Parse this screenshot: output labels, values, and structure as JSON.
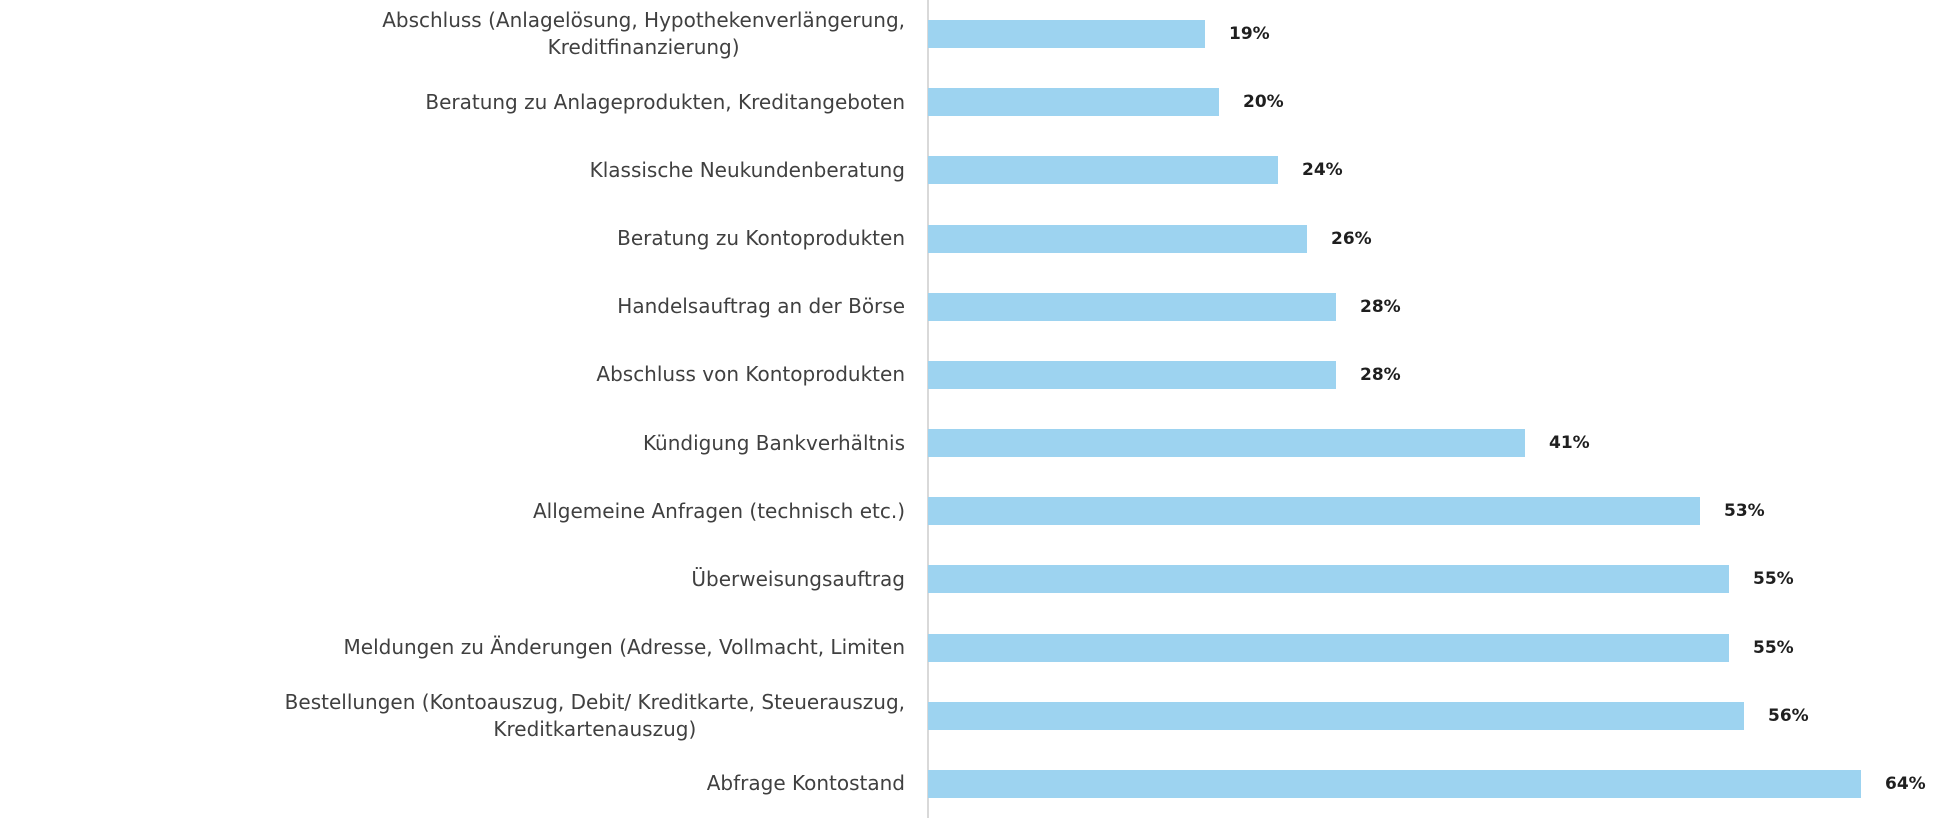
{
  "chart_data": {
    "type": "bar",
    "orientation": "horizontal",
    "title": "",
    "xlabel": "",
    "ylabel": "",
    "xlim": [
      0,
      70
    ],
    "grid": false,
    "legend": false,
    "data_labels_position": "outside-end",
    "bar_color": "#9dd3f0",
    "axis_line_color": "#d9d9d9",
    "category_label_color": "#404040",
    "value_label_color": "#1f1f1f",
    "categories": [
      "Abschluss (Anlagelösung, Hypothekenverlängerung,\nKreditfinanzierung)",
      "Beratung zu Anlageprodukten, Kreditangeboten",
      "Klassische Neukundenberatung",
      "Beratung zu Kontoprodukten",
      "Handelsauftrag an der Börse",
      "Abschluss von Kontoprodukten",
      "Kündigung Bankverhältnis",
      "Allgemeine Anfragen (technisch etc.)",
      "Überweisungsauftrag",
      "Meldungen zu Änderungen (Adresse, Vollmacht, Limiten",
      "Bestellungen (Kontoauszug, Debit/ Kreditkarte, Steuerauszug,\nKreditkartenauszug)",
      "Abfrage Kontostand"
    ],
    "values": [
      19,
      20,
      24,
      26,
      28,
      28,
      41,
      53,
      55,
      55,
      56,
      64
    ],
    "value_labels": [
      "19%",
      "20%",
      "24%",
      "26%",
      "28%",
      "28%",
      "41%",
      "53%",
      "55%",
      "55%",
      "56%",
      "64%"
    ]
  }
}
